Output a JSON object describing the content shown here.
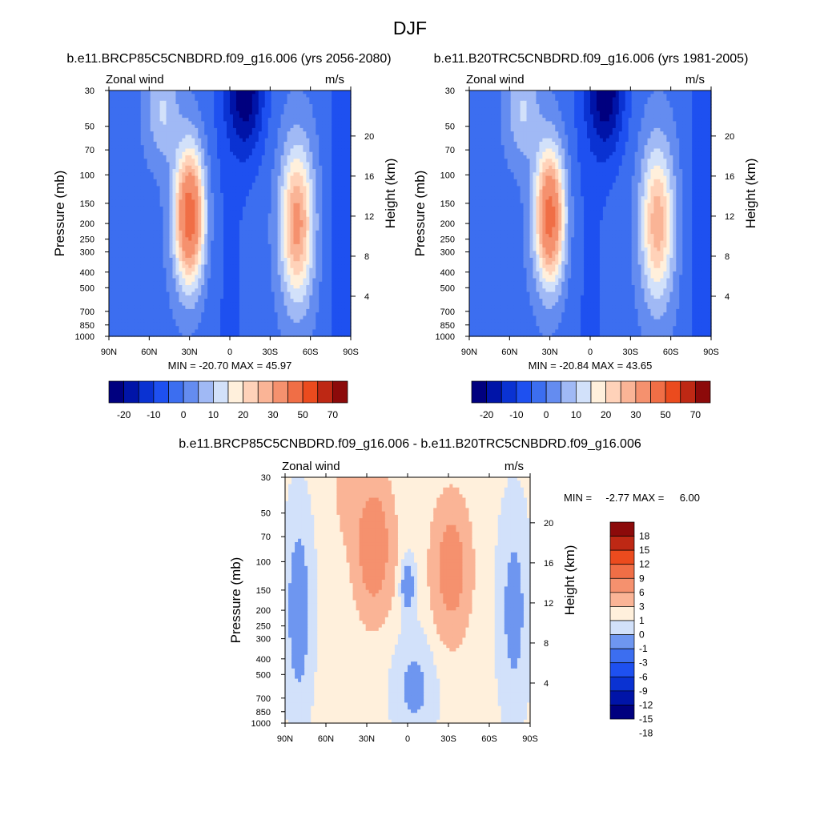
{
  "figure": {
    "title": "DJF"
  },
  "chart_data": [
    {
      "type": "contour",
      "id": "future",
      "title": "b.e11.BRCP85C5CNBDRD.f09_g16.006 (yrs 2056-2080)",
      "left_label": "Zonal wind",
      "right_label": "m/s",
      "ylabel": "Pressure (mb)",
      "ylabel_right": "Height (km)",
      "x_ticks": [
        "90N",
        "60N",
        "30N",
        "0",
        "30S",
        "60S",
        "90S"
      ],
      "x_range": [
        90,
        -90
      ],
      "pressure_ticks": [
        30,
        50,
        70,
        100,
        150,
        200,
        250,
        300,
        400,
        500,
        700,
        850,
        1000
      ],
      "pressure_range": [
        30,
        1000
      ],
      "height_ticks": [
        4,
        8,
        12,
        16,
        20
      ],
      "stats": "MIN = -20.70  MAX = 45.97",
      "min": -20.7,
      "max": 45.97,
      "jets": [
        {
          "lat": 30,
          "p": 180,
          "max": 45.97
        },
        {
          "lat": -50,
          "p": 200,
          "max": 32
        }
      ],
      "colorbar_labels": [
        "-20",
        "-10",
        "0",
        "10",
        "20",
        "30",
        "50",
        "70"
      ],
      "colorbar_levels": [
        -25,
        -20,
        -15,
        -10,
        -5,
        0,
        5,
        10,
        15,
        20,
        25,
        30,
        40,
        50,
        60,
        70
      ]
    },
    {
      "type": "contour",
      "id": "historical",
      "title": "b.e11.B20TRC5CNBDRD.f09_g16.006 (yrs 1981-2005)",
      "left_label": "Zonal wind",
      "right_label": "m/s",
      "ylabel": "Pressure (mb)",
      "ylabel_right": "Height (km)",
      "x_ticks": [
        "90N",
        "60N",
        "30N",
        "0",
        "30S",
        "60S",
        "90S"
      ],
      "x_range": [
        90,
        -90
      ],
      "pressure_ticks": [
        30,
        50,
        70,
        100,
        150,
        200,
        250,
        300,
        400,
        500,
        700,
        850,
        1000
      ],
      "pressure_range": [
        30,
        1000
      ],
      "height_ticks": [
        4,
        8,
        12,
        16,
        20
      ],
      "stats": "MIN = -20.84  MAX = 43.65",
      "min": -20.84,
      "max": 43.65,
      "jets": [
        {
          "lat": 30,
          "p": 180,
          "max": 43.65
        },
        {
          "lat": -50,
          "p": 200,
          "max": 28
        }
      ],
      "colorbar_labels": [
        "-20",
        "-10",
        "0",
        "10",
        "20",
        "30",
        "50",
        "70"
      ],
      "colorbar_levels": [
        -25,
        -20,
        -15,
        -10,
        -5,
        0,
        5,
        10,
        15,
        20,
        25,
        30,
        40,
        50,
        60,
        70
      ]
    },
    {
      "type": "contour",
      "id": "difference",
      "title": "b.e11.BRCP85C5CNBDRD.f09_g16.006 - b.e11.B20TRC5CNBDRD.f09_g16.006",
      "left_label": "Zonal wind",
      "right_label": "m/s",
      "ylabel": "Pressure (mb)",
      "ylabel_right": "Height (km)",
      "x_ticks": [
        "90N",
        "60N",
        "30N",
        "0",
        "30S",
        "60S",
        "90S"
      ],
      "x_range": [
        90,
        -90
      ],
      "pressure_ticks": [
        30,
        50,
        70,
        100,
        150,
        200,
        250,
        300,
        400,
        500,
        700,
        850,
        1000
      ],
      "pressure_range": [
        30,
        1000
      ],
      "height_ticks": [
        4,
        8,
        12,
        16,
        20
      ],
      "stats_min_label": "MIN =",
      "stats_min": "-2.77",
      "stats_max_label": "MAX =",
      "stats_max": "6.00",
      "min": -2.77,
      "max": 6.0,
      "colorbar_labels": [
        "18",
        "15",
        "12",
        "9",
        "6",
        "3",
        "1",
        "0",
        "-1",
        "-3",
        "-6",
        "-9",
        "-12",
        "-15",
        "-18"
      ],
      "colorbar_levels": [
        -18,
        -15,
        -12,
        -9,
        -6,
        -3,
        -1,
        0,
        1,
        3,
        6,
        9,
        12,
        15,
        18
      ]
    }
  ],
  "colors": {
    "div16": [
      "#00007f",
      "#0014a8",
      "#0a32d2",
      "#1e50f0",
      "#3c6ef0",
      "#648cf0",
      "#a0b9f5",
      "#d2e1fa",
      "#fff0dc",
      "#ffd2b9",
      "#fab496",
      "#f5916e",
      "#f06e46",
      "#eb4b1e",
      "#be2814",
      "#8c0a0a"
    ],
    "div14": [
      "#00007f",
      "#0014a8",
      "#0a32d2",
      "#1e50f0",
      "#3c6ef0",
      "#6e96f0",
      "#d2e1fa",
      "#fff0dc",
      "#fab496",
      "#f5916e",
      "#f06e46",
      "#eb4b1e",
      "#be2814",
      "#8c0a0a"
    ]
  }
}
